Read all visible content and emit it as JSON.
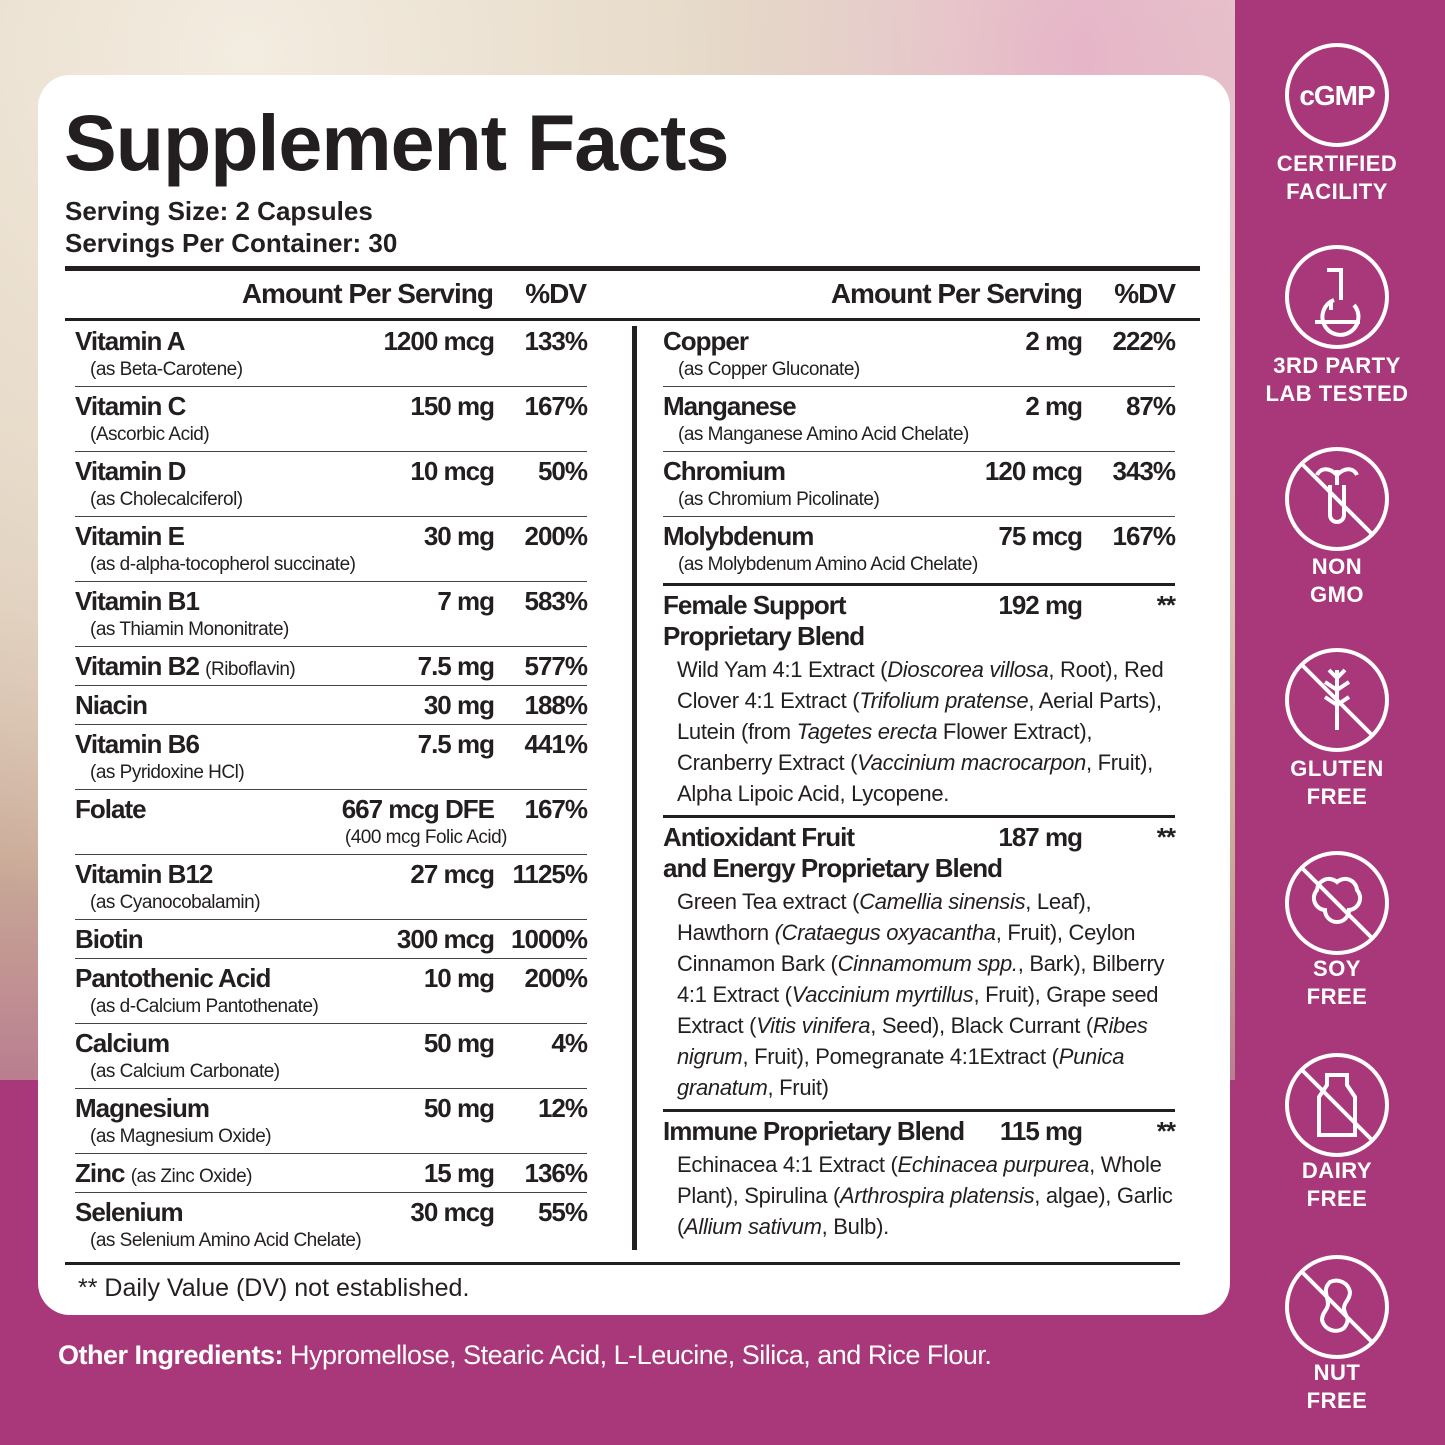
{
  "title": "Supplement Facts",
  "serving_size": "Serving Size: 2 Capsules",
  "servings_per_container": "Servings Per Container: 30",
  "column_headers": {
    "amount": "Amount Per Serving",
    "dv": "%DV"
  },
  "left_rows": [
    {
      "name": "Vitamin A",
      "amount": "1200 mcg",
      "dv": "133%",
      "note": "(as Beta-Carotene)"
    },
    {
      "name": "Vitamin C",
      "amount": "150 mg",
      "dv": "167%",
      "note": "(Ascorbic Acid)"
    },
    {
      "name": "Vitamin D",
      "amount": "10 mcg",
      "dv": "50%",
      "note": "(as Cholecalciferol)"
    },
    {
      "name": "Vitamin E",
      "amount": "30 mg",
      "dv": "200%",
      "note": "(as d-alpha-tocopherol succinate)"
    },
    {
      "name": "Vitamin B1",
      "amount": "7 mg",
      "dv": "583%",
      "note": "(as Thiamin Mononitrate)"
    },
    {
      "name": "Vitamin B2",
      "inline_note": "(Riboflavin)",
      "amount": "7.5 mg",
      "dv": "577%"
    },
    {
      "name": "Niacin",
      "amount": "30 mg",
      "dv": "188%"
    },
    {
      "name": "Vitamin B6",
      "amount": "7.5 mg",
      "dv": "441%",
      "note": "(as Pyridoxine HCl)"
    },
    {
      "name": "Folate",
      "amount": "667 mcg DFE",
      "dv": "167%",
      "amount_note": "(400 mcg Folic Acid)"
    },
    {
      "name": "Vitamin B12",
      "amount": "27 mcg",
      "dv": "1125%",
      "note": "(as Cyanocobalamin)"
    },
    {
      "name": "Biotin",
      "amount": "300 mcg",
      "dv": "1000%"
    },
    {
      "name": "Pantothenic Acid",
      "amount": "10 mg",
      "dv": "200%",
      "note": "(as d-Calcium Pantothenate)"
    },
    {
      "name": "Calcium",
      "amount": "50 mg",
      "dv": "4%",
      "note": "(as Calcium Carbonate)"
    },
    {
      "name": "Magnesium",
      "amount": "50 mg",
      "dv": "12%",
      "note": "(as Magnesium Oxide)"
    },
    {
      "name": "Zinc",
      "inline_note": "(as Zinc Oxide)",
      "amount": "15 mg",
      "dv": "136%"
    },
    {
      "name": "Selenium",
      "amount": "30 mcg",
      "dv": "55%",
      "note": "(as Selenium Amino Acid Chelate)"
    }
  ],
  "right_rows": [
    {
      "name": "Copper",
      "amount": "2 mg",
      "dv": "222%",
      "note": "(as Copper Gluconate)"
    },
    {
      "name": "Manganese",
      "amount": "2 mg",
      "dv": "87%",
      "note": "(as Manganese Amino Acid Chelate)"
    },
    {
      "name": "Chromium",
      "amount": "120 mcg",
      "dv": "343%",
      "note": "(as Chromium Picolinate)"
    },
    {
      "name": "Molybdenum",
      "amount": "75 mcg",
      "dv": "167%",
      "note": "(as Molybdenum Amino Acid Chelate)"
    }
  ],
  "blends": [
    {
      "name_lines": [
        "Female Support",
        "Proprietary Blend"
      ],
      "amount": "192 mg",
      "dv": "**",
      "description": [
        "Wild Yam 4:1 Extract (",
        "Dioscorea villosa",
        ", Root), Red Clover 4:1 Extract (",
        "Trifolium pratense",
        ", Aerial Parts), Lutein (from ",
        "Tagetes erecta",
        " Flower Extract), Cranberry Extract (",
        "Vaccinium macrocarpon",
        ", Fruit), Alpha Lipoic Acid, Lycopene."
      ]
    },
    {
      "name_lines": [
        "Antioxidant Fruit",
        "and Energy Proprietary Blend"
      ],
      "amount": "187 mg",
      "dv": "**",
      "description": [
        "Green Tea extract (",
        "Camellia sinensis",
        ", Leaf), Hawthorn ",
        "(Crataegus oxyacantha",
        ", Fruit), Ceylon Cinnamon Bark (",
        "Cinnamomum spp.",
        ", Bark), Bilberry 4:1 Extract (",
        "Vaccinium myrtillus",
        ", Fruit), Grape seed Extract (",
        "Vitis vinifera",
        ", Seed), Black Currant (",
        "Ribes nigrum",
        ", Fruit), Pomegranate 4:1Extract (",
        "Punica granatum",
        ", Fruit)"
      ]
    },
    {
      "name_lines": [
        "Immune Proprietary Blend"
      ],
      "amount": "115 mg",
      "dv": "**",
      "description": [
        "Echinacea 4:1 Extract (",
        "Echinacea purpurea",
        ", Whole Plant), Spirulina (",
        "Arthrospira platensis",
        ", algae), Garlic (",
        "Allium sativum",
        ", Bulb)."
      ]
    }
  ],
  "footnote": "** Daily Value (DV) not established.",
  "other_ingredients": {
    "label": "Other Ingredients:",
    "text": " Hypromellose, Stearic Acid, L-Leucine, Silica, and Rice Flour."
  },
  "badges": {
    "cgmp_mark": "cGMP",
    "items": [
      {
        "lines": [
          "CERTIFIED",
          "FACILITY"
        ]
      },
      {
        "lines": [
          "3RD PARTY",
          "LAB TESTED"
        ]
      },
      {
        "lines": [
          "NON",
          "GMO"
        ]
      },
      {
        "lines": [
          "GLUTEN",
          "FREE"
        ]
      },
      {
        "lines": [
          "SOY",
          "FREE"
        ]
      },
      {
        "lines": [
          "DAIRY",
          "FREE"
        ]
      },
      {
        "lines": [
          "NUT",
          "FREE"
        ]
      }
    ]
  }
}
